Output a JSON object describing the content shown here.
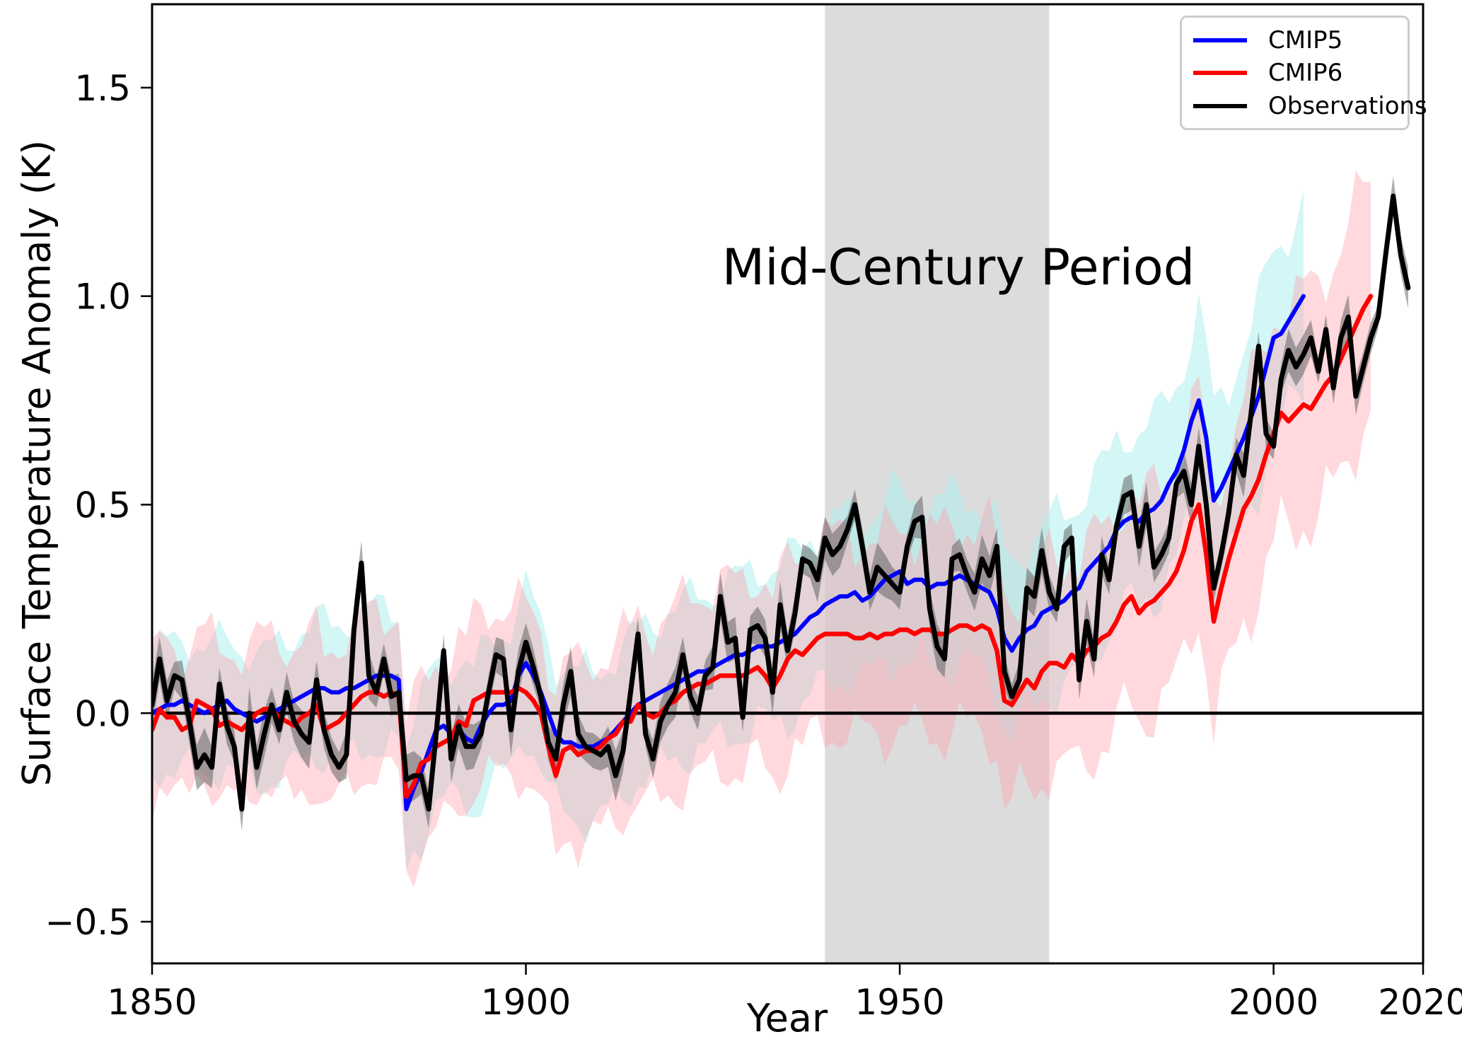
{
  "chart_data": {
    "type": "line",
    "title": "",
    "xlabel": "Year",
    "ylabel": "Surface Temperature Anomaly (K)",
    "xlim": [
      1850,
      2020
    ],
    "ylim": [
      -0.6,
      1.7
    ],
    "xticks": [
      1850,
      1900,
      1950,
      2000,
      2020
    ],
    "yticks": [
      -0.5,
      0.0,
      0.5,
      1.0,
      1.5
    ],
    "grid": false,
    "zero_line": true,
    "legend_position": "upper right",
    "annotation": {
      "text": "Mid-Century Period",
      "x": 1957,
      "y": 1.05
    },
    "highlight_band": {
      "label": "Mid-Century Period",
      "x_start": 1940,
      "x_end": 1970,
      "color": "rgba(128,128,128,0.28)"
    },
    "series": [
      {
        "name": "CMIP5",
        "color": "#0000ff",
        "start_year": 1850,
        "band": {
          "color": "rgba(175,238,238,0.55)",
          "start": 0.15,
          "end": 0.22
        },
        "values": [
          0.0,
          0.01,
          0.02,
          0.02,
          0.03,
          0.02,
          0.01,
          0.0,
          0.01,
          0.02,
          0.03,
          0.01,
          0.0,
          -0.01,
          -0.02,
          -0.01,
          0.0,
          0.01,
          0.02,
          0.03,
          0.04,
          0.05,
          0.06,
          0.06,
          0.05,
          0.05,
          0.06,
          0.06,
          0.07,
          0.08,
          0.09,
          0.09,
          0.09,
          0.08,
          -0.23,
          -0.18,
          -0.14,
          -0.09,
          -0.04,
          -0.03,
          -0.05,
          -0.04,
          -0.06,
          -0.07,
          -0.03,
          0.0,
          0.02,
          0.02,
          0.03,
          0.09,
          0.12,
          0.09,
          0.05,
          0.0,
          -0.05,
          -0.07,
          -0.07,
          -0.08,
          -0.08,
          -0.08,
          -0.07,
          -0.06,
          -0.04,
          -0.02,
          0.0,
          0.02,
          0.03,
          0.04,
          0.05,
          0.06,
          0.07,
          0.08,
          0.09,
          0.1,
          0.1,
          0.11,
          0.12,
          0.13,
          0.14,
          0.14,
          0.15,
          0.16,
          0.16,
          0.16,
          0.17,
          0.18,
          0.19,
          0.21,
          0.23,
          0.24,
          0.26,
          0.27,
          0.28,
          0.28,
          0.29,
          0.27,
          0.28,
          0.3,
          0.32,
          0.33,
          0.34,
          0.31,
          0.32,
          0.32,
          0.3,
          0.31,
          0.31,
          0.32,
          0.33,
          0.32,
          0.31,
          0.3,
          0.29,
          0.25,
          0.18,
          0.15,
          0.18,
          0.2,
          0.21,
          0.24,
          0.25,
          0.26,
          0.27,
          0.29,
          0.3,
          0.34,
          0.36,
          0.38,
          0.4,
          0.44,
          0.46,
          0.47,
          0.46,
          0.48,
          0.49,
          0.51,
          0.55,
          0.58,
          0.63,
          0.7,
          0.75,
          0.66,
          0.51,
          0.54,
          0.58,
          0.62,
          0.66,
          0.71,
          0.76,
          0.83,
          0.9,
          0.91,
          0.94,
          0.97,
          1.0
        ]
      },
      {
        "name": "CMIP6",
        "color": "#ff0000",
        "start_year": 1850,
        "band": {
          "color": "rgba(255,160,170,0.40)",
          "start": 0.17,
          "end": 0.28
        },
        "values": [
          -0.04,
          0.01,
          -0.01,
          -0.01,
          -0.04,
          -0.03,
          0.03,
          0.02,
          0.01,
          -0.03,
          -0.02,
          -0.03,
          -0.04,
          -0.02,
          0.0,
          0.01,
          0.01,
          -0.01,
          -0.02,
          -0.03,
          -0.01,
          0.0,
          0.02,
          -0.04,
          -0.03,
          -0.02,
          0.0,
          0.02,
          0.04,
          0.05,
          0.05,
          0.04,
          0.05,
          0.04,
          -0.2,
          -0.17,
          -0.12,
          -0.11,
          -0.08,
          -0.07,
          -0.06,
          -0.02,
          -0.03,
          0.03,
          0.04,
          0.05,
          0.05,
          0.05,
          0.05,
          0.06,
          0.05,
          0.03,
          0.0,
          -0.08,
          -0.15,
          -0.09,
          -0.08,
          -0.1,
          -0.09,
          -0.09,
          -0.08,
          -0.06,
          -0.05,
          -0.02,
          -0.02,
          0.02,
          0.0,
          -0.01,
          0.0,
          0.02,
          0.03,
          0.05,
          0.06,
          0.07,
          0.07,
          0.08,
          0.09,
          0.09,
          0.09,
          0.09,
          0.1,
          0.11,
          0.09,
          0.06,
          0.09,
          0.13,
          0.15,
          0.14,
          0.16,
          0.18,
          0.19,
          0.19,
          0.19,
          0.19,
          0.18,
          0.18,
          0.19,
          0.18,
          0.19,
          0.19,
          0.2,
          0.2,
          0.19,
          0.2,
          0.2,
          0.19,
          0.19,
          0.2,
          0.21,
          0.21,
          0.2,
          0.21,
          0.2,
          0.15,
          0.03,
          0.02,
          0.05,
          0.08,
          0.06,
          0.1,
          0.12,
          0.12,
          0.11,
          0.14,
          0.12,
          0.15,
          0.16,
          0.18,
          0.19,
          0.22,
          0.26,
          0.28,
          0.24,
          0.26,
          0.27,
          0.29,
          0.31,
          0.34,
          0.39,
          0.46,
          0.5,
          0.38,
          0.22,
          0.3,
          0.37,
          0.43,
          0.49,
          0.52,
          0.56,
          0.62,
          0.67,
          0.72,
          0.7,
          0.72,
          0.74,
          0.73,
          0.76,
          0.79,
          0.81,
          0.85,
          0.89,
          0.93,
          0.97,
          1.0
        ]
      },
      {
        "name": "Observations",
        "color": "#000000",
        "start_year": 1850,
        "band": {
          "color": "rgba(90,90,90,0.50)",
          "start": 0.05,
          "end": 0.04
        },
        "values": [
          0.02,
          0.13,
          0.03,
          0.09,
          0.08,
          -0.02,
          -0.13,
          -0.1,
          -0.13,
          0.07,
          -0.03,
          -0.08,
          -0.23,
          0.0,
          -0.13,
          -0.05,
          0.02,
          -0.04,
          0.05,
          -0.02,
          -0.05,
          -0.07,
          0.08,
          -0.04,
          -0.1,
          -0.13,
          -0.1,
          0.2,
          0.36,
          0.09,
          0.05,
          0.13,
          0.04,
          0.05,
          -0.16,
          -0.15,
          -0.15,
          -0.23,
          -0.05,
          0.15,
          -0.11,
          -0.03,
          -0.08,
          -0.08,
          -0.05,
          0.05,
          0.14,
          0.13,
          -0.04,
          0.1,
          0.17,
          0.11,
          0.04,
          -0.07,
          -0.11,
          0.02,
          0.1,
          -0.05,
          -0.08,
          -0.09,
          -0.1,
          -0.08,
          -0.15,
          -0.09,
          0.05,
          0.19,
          -0.05,
          -0.11,
          -0.02,
          0.02,
          0.05,
          0.14,
          0.04,
          0.0,
          0.09,
          0.11,
          0.28,
          0.17,
          0.18,
          -0.01,
          0.2,
          0.21,
          0.18,
          0.05,
          0.26,
          0.15,
          0.24,
          0.37,
          0.36,
          0.32,
          0.42,
          0.38,
          0.4,
          0.44,
          0.5,
          0.4,
          0.29,
          0.35,
          0.33,
          0.31,
          0.29,
          0.4,
          0.46,
          0.47,
          0.25,
          0.16,
          0.13,
          0.37,
          0.38,
          0.33,
          0.29,
          0.37,
          0.33,
          0.4,
          0.1,
          0.04,
          0.08,
          0.3,
          0.28,
          0.39,
          0.29,
          0.25,
          0.4,
          0.42,
          0.08,
          0.22,
          0.13,
          0.38,
          0.32,
          0.45,
          0.52,
          0.53,
          0.4,
          0.5,
          0.35,
          0.38,
          0.42,
          0.55,
          0.58,
          0.5,
          0.64,
          0.5,
          0.3,
          0.38,
          0.48,
          0.62,
          0.57,
          0.72,
          0.88,
          0.67,
          0.64,
          0.8,
          0.87,
          0.83,
          0.86,
          0.9,
          0.82,
          0.92,
          0.78,
          0.9,
          0.95,
          0.76,
          0.83,
          0.9,
          0.95,
          1.1,
          1.24,
          1.1,
          1.02
        ]
      }
    ]
  }
}
